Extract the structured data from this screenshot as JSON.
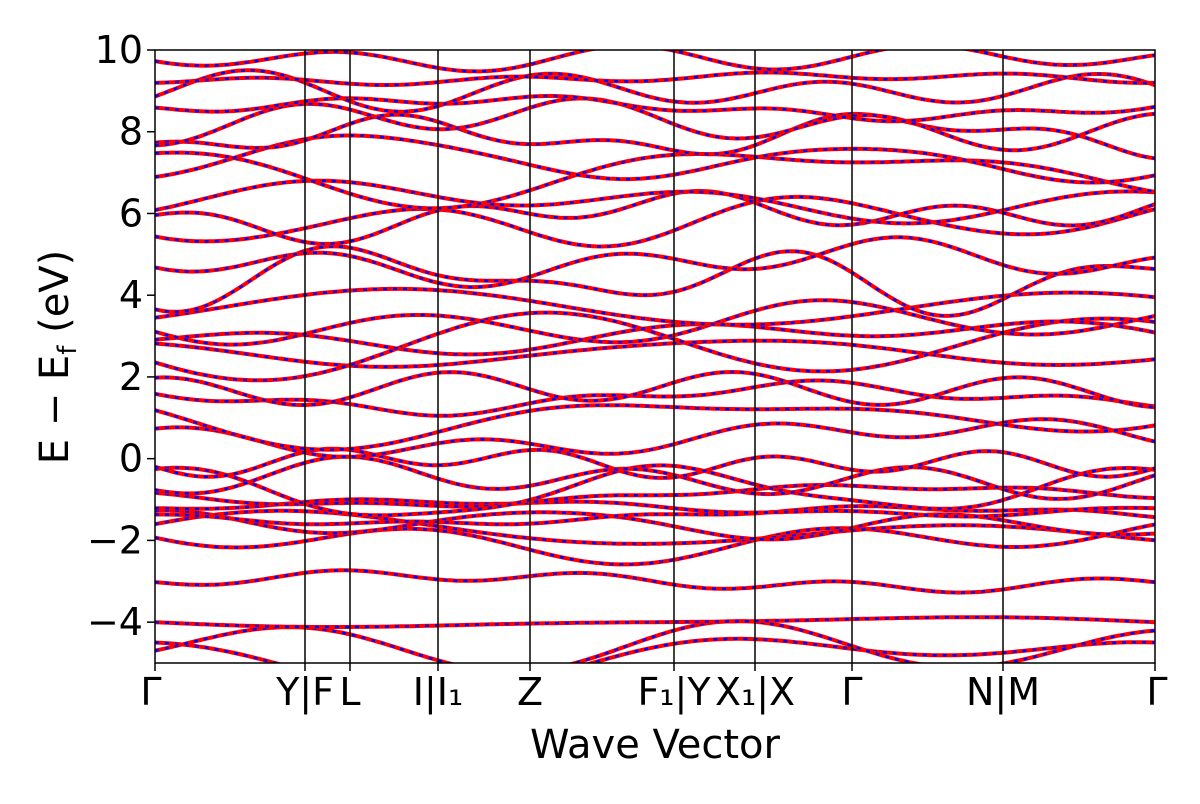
{
  "chart_data": {
    "type": "line",
    "title": "",
    "xlabel": "Wave Vector",
    "ylabel": "E − E",
    "ylabel_sub": "f",
    "ylabel_unit": " (eV)",
    "ylim": [
      -5,
      10
    ],
    "yticks": [
      -4,
      -2,
      0,
      2,
      4,
      6,
      8,
      10
    ],
    "ytick_labels": [
      "−4",
      "−2",
      "0",
      "2",
      "4",
      "6",
      "8",
      "10"
    ],
    "xlim": [
      0,
      1
    ],
    "kpath_positions": [
      0,
      0.15,
      0.195,
      0.283,
      0.375,
      0.519,
      0.6,
      0.697,
      0.848,
      1.0
    ],
    "kpath_labels": [
      {
        "x": 0.0,
        "text": "Γ"
      },
      {
        "x": 0.15,
        "text": "Y|F"
      },
      {
        "x": 0.195,
        "text": "L"
      },
      {
        "x": 0.283,
        "text": "I|I₁"
      },
      {
        "x": 0.375,
        "text": "Z"
      },
      {
        "x": 0.519,
        "text": "F₁|Y"
      },
      {
        "x": 0.6,
        "text": "X₁|X"
      },
      {
        "x": 0.697,
        "text": "Γ"
      },
      {
        "x": 0.848,
        "text": "N|M"
      },
      {
        "x": 1.0,
        "text": "Γ"
      }
    ],
    "grid": false,
    "series_styles": {
      "red": {
        "color": "#ff0000",
        "style": "solid"
      },
      "blue": {
        "color": "#0000ff",
        "style": "dashed"
      }
    },
    "band_energies_at_gamma": [
      -4.9,
      -4.6,
      -4.0,
      -3.0,
      -2.0,
      -1.8,
      -1.6,
      -1.4,
      -1.2,
      -0.9,
      -0.8,
      -0.5,
      -0.1,
      0.5,
      1.0,
      1.5,
      1.7,
      2.6,
      2.8,
      3.0,
      3.3,
      3.7,
      4.4,
      4.8,
      5.8,
      6.0,
      6.3,
      7.0,
      7.3,
      7.9,
      8.2,
      8.6,
      9.0,
      9.3,
      9.8
    ]
  },
  "colors": {
    "band_primary": "#ff0000",
    "band_overlay": "#0000ff",
    "axis": "#000000"
  }
}
